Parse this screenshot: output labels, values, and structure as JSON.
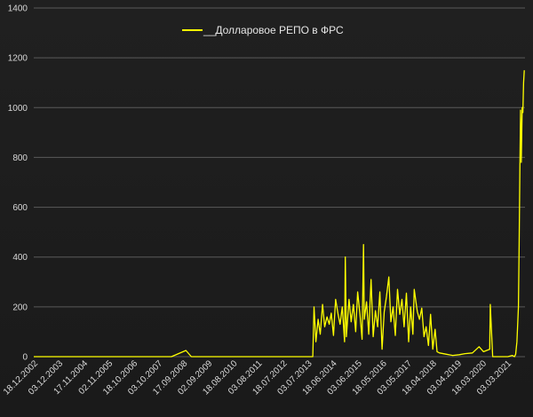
{
  "chart_data": {
    "type": "line",
    "title": "",
    "xlabel": "",
    "ylabel": "",
    "ylim": [
      0,
      1400
    ],
    "yticks": [
      0,
      200,
      400,
      600,
      800,
      1000,
      1200,
      1400
    ],
    "grid": "horizontal",
    "legend_position": "top-center",
    "colors": {
      "background": "#1c1c1c",
      "line": "#ffff00",
      "grid": "#5a5a5a",
      "text": "#d9d9d9"
    },
    "x_tick_labels": [
      "18.12.2002",
      "03.12.2003",
      "17.11.2004",
      "02.11.2005",
      "18.10.2006",
      "03.10.2007",
      "17.09.2008",
      "02.09.2009",
      "18.08.2010",
      "03.08.2011",
      "18.07.2012",
      "03.07.2013",
      "18.06.2014",
      "03.06.2015",
      "18.05.2016",
      "03.05.2017",
      "18.04.2018",
      "03.04.2019",
      "18.03.2020",
      "03.03.2021"
    ],
    "series": [
      {
        "name": "__Долларовое РЕПО в ФРС",
        "x": [
          "2002-12-18",
          "2003-12-03",
          "2004-11-17",
          "2005-11-02",
          "2006-10-18",
          "2007-10-03",
          "2008-03-01",
          "2008-09-17",
          "2008-12-01",
          "2009-09-02",
          "2010-08-18",
          "2011-08-03",
          "2012-07-18",
          "2013-07-03",
          "2013-07-20",
          "2013-08-15",
          "2013-09-15",
          "2013-10-15",
          "2013-11-15",
          "2013-12-15",
          "2014-01-15",
          "2014-02-15",
          "2014-03-15",
          "2014-04-15",
          "2014-05-15",
          "2014-06-18",
          "2014-07-15",
          "2014-08-15",
          "2014-09-15",
          "2014-09-25",
          "2014-10-10",
          "2014-11-15",
          "2014-12-15",
          "2015-01-15",
          "2015-02-15",
          "2015-03-15",
          "2015-04-15",
          "2015-05-15",
          "2015-06-03",
          "2015-06-15",
          "2015-07-15",
          "2015-08-15",
          "2015-09-15",
          "2015-10-15",
          "2015-11-15",
          "2015-12-15",
          "2016-01-15",
          "2016-02-15",
          "2016-03-15",
          "2016-04-15",
          "2016-05-18",
          "2016-06-15",
          "2016-07-15",
          "2016-08-15",
          "2016-09-15",
          "2016-10-15",
          "2016-11-15",
          "2016-12-15",
          "2017-01-15",
          "2017-02-15",
          "2017-03-15",
          "2017-04-15",
          "2017-05-03",
          "2017-06-15",
          "2017-07-15",
          "2017-08-15",
          "2017-09-15",
          "2017-10-15",
          "2017-11-15",
          "2017-12-15",
          "2018-01-15",
          "2018-02-15",
          "2018-03-15",
          "2018-04-18",
          "2018-07-15",
          "2018-10-15",
          "2019-01-15",
          "2019-04-03",
          "2019-07-15",
          "2019-10-15",
          "2019-12-15",
          "2020-03-10",
          "2020-03-18",
          "2020-04-20",
          "2020-07-15",
          "2020-09-15",
          "2020-11-15",
          "2021-01-15",
          "2021-02-15",
          "2021-03-03",
          "2021-03-20",
          "2021-04-10",
          "2021-04-20",
          "2021-05-01",
          "2021-05-10",
          "2021-05-20",
          "2021-06-01",
          "2021-06-10",
          "2021-06-20",
          "2021-06-30"
        ],
        "values": [
          0,
          0,
          0,
          0,
          0,
          0,
          0,
          25,
          0,
          0,
          0,
          0,
          0,
          0,
          200,
          60,
          150,
          90,
          210,
          120,
          160,
          130,
          175,
          85,
          230,
          170,
          130,
          200,
          60,
          400,
          80,
          230,
          140,
          210,
          100,
          260,
          170,
          70,
          450,
          150,
          220,
          90,
          310,
          80,
          185,
          120,
          260,
          30,
          180,
          240,
          320,
          140,
          200,
          85,
          270,
          170,
          230,
          120,
          255,
          60,
          200,
          90,
          270,
          180,
          150,
          195,
          80,
          120,
          45,
          170,
          30,
          110,
          20,
          15,
          10,
          5,
          8,
          12,
          15,
          40,
          20,
          30,
          210,
          0,
          0,
          0,
          0,
          5,
          0,
          10,
          60,
          200,
          450,
          780,
          990,
          780,
          1000,
          980,
          1100,
          1150
        ]
      }
    ]
  }
}
